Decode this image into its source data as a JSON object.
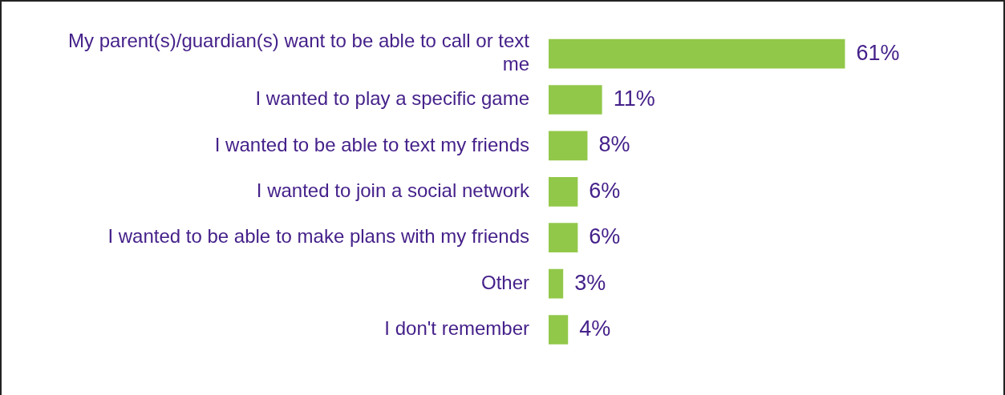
{
  "chart_data": {
    "type": "bar",
    "orientation": "horizontal",
    "categories": [
      "My parent(s)/guardian(s) want to be able to call or text me",
      "I wanted to play a specific game",
      "I wanted to be able to text my friends",
      "I wanted to join a social network",
      "I wanted to be able to make plans with my friends",
      "Other",
      "I don't remember"
    ],
    "values": [
      61,
      11,
      8,
      6,
      6,
      3,
      4
    ],
    "value_labels": [
      "61%",
      "11%",
      "8%",
      "6%",
      "6%",
      "3%",
      "4%"
    ],
    "color": "#92c84a",
    "legend": false,
    "tick_labels": "y"
  }
}
